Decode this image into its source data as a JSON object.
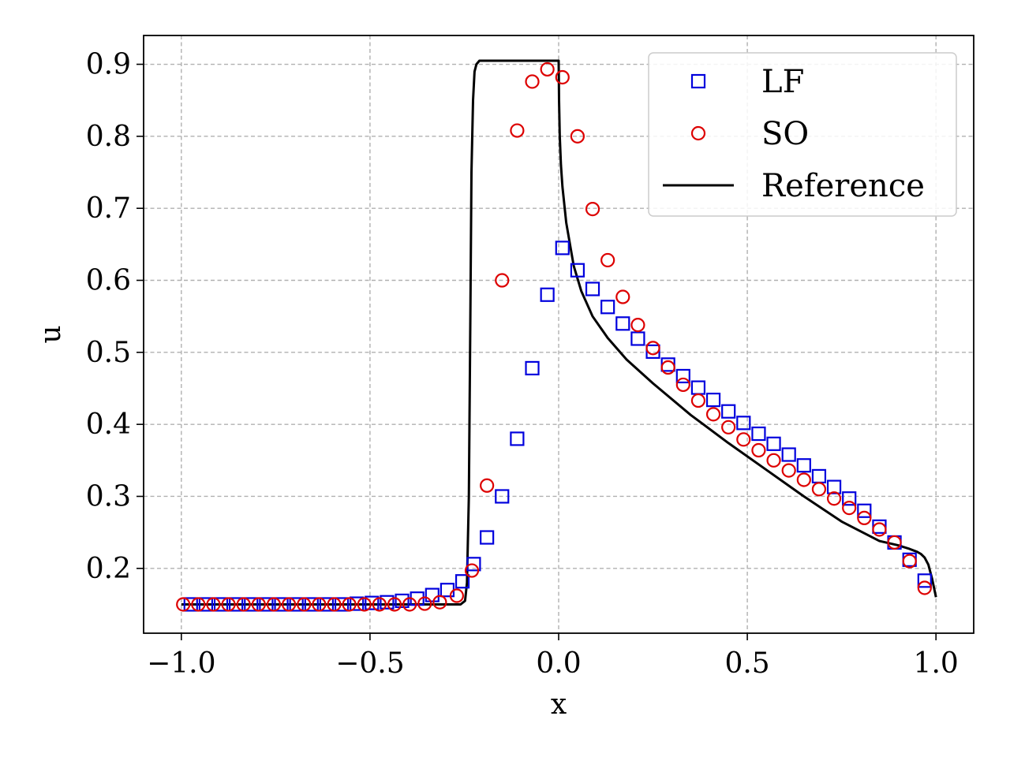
{
  "chart_data": {
    "type": "scatter",
    "title": "",
    "xlabel": "x",
    "ylabel": "u",
    "xlim": [
      -1.1,
      1.1
    ],
    "ylim": [
      0.11,
      0.94
    ],
    "xticks": [
      -1.0,
      -0.5,
      0.0,
      0.5,
      1.0
    ],
    "xtick_labels": [
      "−1.0",
      "−0.5",
      "0.0",
      "0.5",
      "1.0"
    ],
    "yticks": [
      0.2,
      0.3,
      0.4,
      0.5,
      0.6,
      0.7,
      0.8,
      0.9
    ],
    "ytick_labels": [
      "0.2",
      "0.3",
      "0.4",
      "0.5",
      "0.6",
      "0.7",
      "0.8",
      "0.9"
    ],
    "grid": true,
    "legend_position": "top-right",
    "series": [
      {
        "name": "LF",
        "marker": "square",
        "color": "#0000dd",
        "x": [
          -0.975,
          -0.935,
          -0.895,
          -0.855,
          -0.815,
          -0.775,
          -0.735,
          -0.695,
          -0.655,
          -0.615,
          -0.575,
          -0.535,
          -0.495,
          -0.455,
          -0.415,
          -0.375,
          -0.335,
          -0.295,
          -0.255,
          -0.225,
          -0.19,
          -0.15,
          -0.11,
          -0.07,
          -0.03,
          0.01,
          0.05,
          0.09,
          0.13,
          0.17,
          0.21,
          0.25,
          0.29,
          0.33,
          0.37,
          0.41,
          0.45,
          0.49,
          0.53,
          0.57,
          0.61,
          0.65,
          0.69,
          0.73,
          0.77,
          0.81,
          0.85,
          0.89,
          0.93,
          0.97
        ],
        "y": [
          0.15,
          0.15,
          0.15,
          0.15,
          0.15,
          0.15,
          0.15,
          0.15,
          0.15,
          0.15,
          0.15,
          0.151,
          0.152,
          0.153,
          0.155,
          0.158,
          0.163,
          0.17,
          0.182,
          0.206,
          0.243,
          0.3,
          0.38,
          0.478,
          0.58,
          0.645,
          0.614,
          0.588,
          0.563,
          0.54,
          0.519,
          0.501,
          0.483,
          0.467,
          0.451,
          0.434,
          0.418,
          0.402,
          0.387,
          0.373,
          0.358,
          0.343,
          0.328,
          0.313,
          0.297,
          0.28,
          0.258,
          0.236,
          0.212,
          0.183
        ]
      },
      {
        "name": "SO",
        "marker": "circle",
        "color": "#dd0000",
        "x": [
          -0.995,
          -0.955,
          -0.915,
          -0.875,
          -0.835,
          -0.795,
          -0.755,
          -0.715,
          -0.675,
          -0.635,
          -0.595,
          -0.555,
          -0.515,
          -0.475,
          -0.435,
          -0.395,
          -0.355,
          -0.315,
          -0.27,
          -0.23,
          -0.19,
          -0.15,
          -0.11,
          -0.07,
          -0.03,
          0.01,
          0.05,
          0.09,
          0.13,
          0.17,
          0.21,
          0.25,
          0.29,
          0.33,
          0.37,
          0.41,
          0.45,
          0.49,
          0.53,
          0.57,
          0.61,
          0.65,
          0.69,
          0.73,
          0.77,
          0.81,
          0.85,
          0.89,
          0.93,
          0.97
        ],
        "y": [
          0.15,
          0.15,
          0.15,
          0.15,
          0.15,
          0.15,
          0.15,
          0.15,
          0.15,
          0.15,
          0.15,
          0.15,
          0.15,
          0.15,
          0.15,
          0.15,
          0.151,
          0.153,
          0.162,
          0.197,
          0.315,
          0.6,
          0.808,
          0.876,
          0.893,
          0.882,
          0.8,
          0.699,
          0.628,
          0.577,
          0.538,
          0.506,
          0.479,
          0.455,
          0.433,
          0.414,
          0.396,
          0.379,
          0.364,
          0.35,
          0.336,
          0.323,
          0.31,
          0.297,
          0.284,
          0.27,
          0.254,
          0.236,
          0.21,
          0.173
        ]
      },
      {
        "name": "Reference",
        "marker": "line",
        "color": "#000000",
        "x": [
          -1.0,
          -0.5,
          -0.26,
          -0.248,
          -0.243,
          -0.238,
          -0.234,
          -0.231,
          -0.227,
          -0.223,
          -0.218,
          -0.21,
          -0.2,
          -0.1,
          0.0,
          0.001,
          0.003,
          0.006,
          0.01,
          0.02,
          0.04,
          0.06,
          0.09,
          0.13,
          0.18,
          0.25,
          0.35,
          0.45,
          0.55,
          0.65,
          0.75,
          0.85,
          0.9,
          0.93,
          0.95,
          0.96,
          0.97,
          0.98,
          0.99,
          1.0
        ],
        "y": [
          0.15,
          0.15,
          0.15,
          0.155,
          0.18,
          0.3,
          0.55,
          0.75,
          0.85,
          0.89,
          0.9,
          0.905,
          0.905,
          0.905,
          0.905,
          0.85,
          0.8,
          0.76,
          0.73,
          0.68,
          0.62,
          0.585,
          0.55,
          0.52,
          0.49,
          0.457,
          0.413,
          0.374,
          0.337,
          0.3,
          0.265,
          0.238,
          0.232,
          0.227,
          0.223,
          0.22,
          0.215,
          0.205,
          0.185,
          0.16
        ]
      }
    ]
  }
}
